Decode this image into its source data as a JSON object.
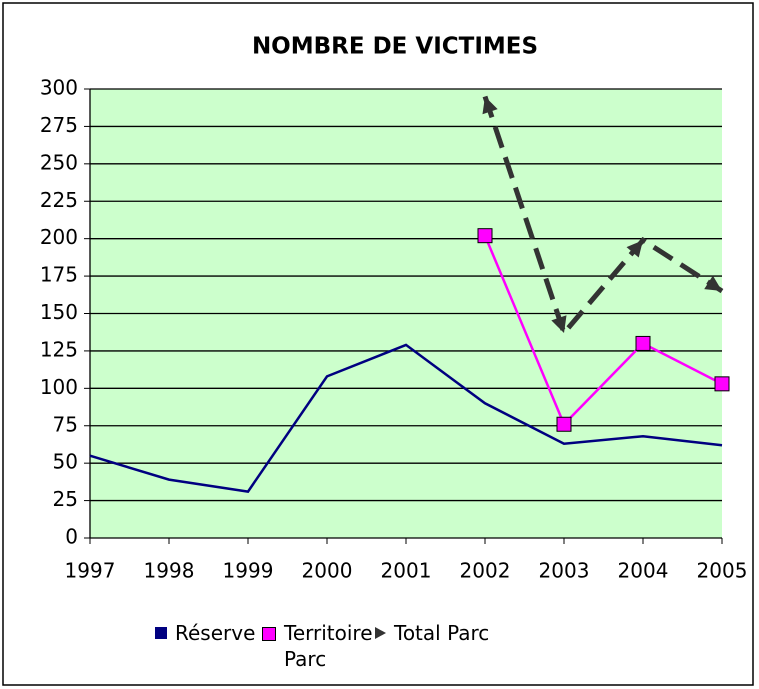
{
  "chart_data": {
    "type": "line",
    "title": "NOMBRE DE VICTIMES",
    "categories": [
      "1997",
      "1998",
      "1999",
      "2000",
      "2001",
      "2002",
      "2003",
      "2004",
      "2005"
    ],
    "series": [
      {
        "name": "Réserve",
        "color": "#000080",
        "marker": "none",
        "dash": false,
        "values": [
          55,
          39,
          31,
          108,
          129,
          90,
          63,
          68,
          62
        ]
      },
      {
        "name": "Territoire Parc",
        "color": "#ff00ff",
        "marker": "square",
        "dash": false,
        "values": [
          null,
          null,
          null,
          null,
          null,
          202,
          76,
          130,
          103
        ]
      },
      {
        "name": "Total Parc",
        "color": "#333333",
        "marker": "arrow",
        "dash": true,
        "values": [
          null,
          null,
          null,
          null,
          null,
          295,
          137,
          199,
          165
        ]
      }
    ],
    "ylim": [
      0,
      300
    ],
    "yticks": [
      0,
      25,
      50,
      75,
      100,
      125,
      150,
      175,
      200,
      225,
      250,
      275,
      300
    ],
    "grid": true,
    "legend": "bottom",
    "background": "#ccffcc"
  }
}
